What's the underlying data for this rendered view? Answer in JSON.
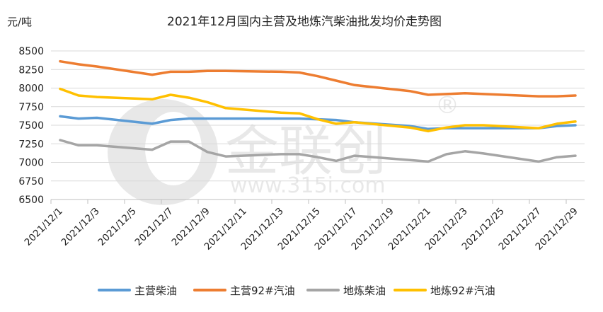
{
  "chart_data": {
    "type": "line",
    "title": "2021年12月国内主营及地炼汽柴油批发均价走势图",
    "ylabel": "元/吨",
    "xlabel": "",
    "ylim": [
      6500,
      8500
    ],
    "yticks": [
      6500,
      6750,
      7000,
      7250,
      7500,
      7750,
      8000,
      8250,
      8500
    ],
    "xlim": [
      "2021/12/1",
      "2021/12/29"
    ],
    "xtick_labels": [
      "2021/12/1",
      "2021/12/3",
      "2021/12/5",
      "2021/12/7",
      "2021/12/9",
      "2021/12/11",
      "2021/12/13",
      "2021/12/15",
      "2021/12/17",
      "2021/12/19",
      "2021/12/21",
      "2021/12/23",
      "2021/12/25",
      "2021/12/27",
      "2021/12/29"
    ],
    "grid": true,
    "legend": "bottom",
    "x": [
      "2021/12/1",
      "2021/12/2",
      "2021/12/3",
      "2021/12/6",
      "2021/12/7",
      "2021/12/8",
      "2021/12/9",
      "2021/12/10",
      "2021/12/13",
      "2021/12/14",
      "2021/12/15",
      "2021/12/16",
      "2021/12/17",
      "2021/12/20",
      "2021/12/21",
      "2021/12/22",
      "2021/12/23",
      "2021/12/24",
      "2021/12/27",
      "2021/12/28",
      "2021/12/29"
    ],
    "series": [
      {
        "name": "主营柴油",
        "color": "#5B9BD5",
        "values": [
          7620,
          7590,
          7600,
          7520,
          7570,
          7590,
          7590,
          7590,
          7590,
          7590,
          7580,
          7570,
          7540,
          7490,
          7450,
          7460,
          7460,
          7460,
          7460,
          7490,
          7500
        ]
      },
      {
        "name": "主营92#汽油",
        "color": "#ED7D31",
        "values": [
          8360,
          8320,
          8290,
          8180,
          8220,
          8220,
          8230,
          8230,
          8220,
          8210,
          8160,
          8100,
          8040,
          7960,
          7910,
          7920,
          7930,
          7920,
          7890,
          7890,
          7900
        ]
      },
      {
        "name": "地炼柴油",
        "color": "#A5A5A5",
        "values": [
          7300,
          7230,
          7230,
          7170,
          7280,
          7280,
          7140,
          7080,
          7110,
          7110,
          7070,
          7020,
          7090,
          7030,
          7010,
          7110,
          7150,
          7120,
          7010,
          7070,
          7090
        ]
      },
      {
        "name": "地炼92#汽油",
        "color": "#FFC000",
        "values": [
          7990,
          7900,
          7880,
          7850,
          7910,
          7870,
          7810,
          7730,
          7670,
          7660,
          7580,
          7520,
          7540,
          7470,
          7420,
          7470,
          7500,
          7500,
          7460,
          7520,
          7550
        ]
      }
    ]
  },
  "watermark": {
    "brand": "金联创",
    "url": "www.315i.com",
    "mark": "®"
  }
}
